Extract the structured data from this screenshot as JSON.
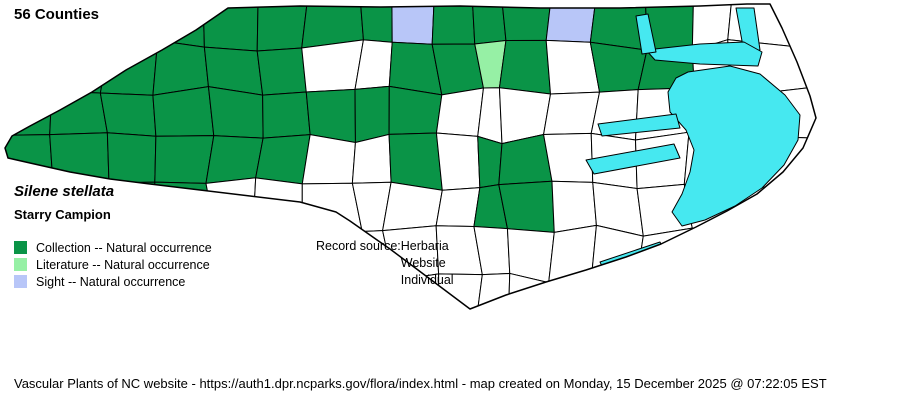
{
  "title": "56 Counties",
  "species": {
    "scientific_name": "Silene stellata",
    "common_name": "Starry Campion"
  },
  "legend": {
    "items": [
      {
        "label": "Collection -- Natural occurrence",
        "color": "#0a9447",
        "code": "G"
      },
      {
        "label": "Literature -- Natural occurrence",
        "color": "#96f0a5",
        "code": "L"
      },
      {
        "label": "Sight -- Natural occurrence",
        "color": "#b8c6f8",
        "code": "S"
      }
    ]
  },
  "record_source": {
    "label": "Record source:",
    "values": [
      "Herbaria",
      "Website",
      "Individual"
    ]
  },
  "footer": "Vascular Plants of NC website - https://auth1.dpr.ncparks.gov/flora/index.html - map created on Monday, 15 December 2025 @ 07:22:05 EST",
  "map": {
    "description": "North Carolina county map with occurrence shading",
    "colors": {
      "collection": "#0a9447",
      "literature": "#96f0a5",
      "sight": "#b8c6f8",
      "none": "#ffffff",
      "water": "#46e8f0",
      "border": "#000000"
    },
    "grid": {
      "col_edges": [
        -10,
        52,
        104,
        156,
        208,
        258,
        308,
        358,
        388,
        438,
        478,
        504,
        550,
        596,
        642,
        688,
        732,
        820
      ],
      "row_edges": [
        -10,
        46,
        92,
        138,
        184,
        230,
        278,
        340
      ],
      "cells": [
        "GGGGGGGGSGGGSGGWW",
        "GGGGGGWWGGLGWGGWW",
        "GGGGGGGGGWWWWWWWW",
        "GGGGGGWWGWGGWWWWW",
        "GGGGWWWWWWGGWWWWW",
        "WWWWWWWWWWWWWWWWW",
        "WWWWWWWWWWWWWWWWW"
      ]
    }
  }
}
